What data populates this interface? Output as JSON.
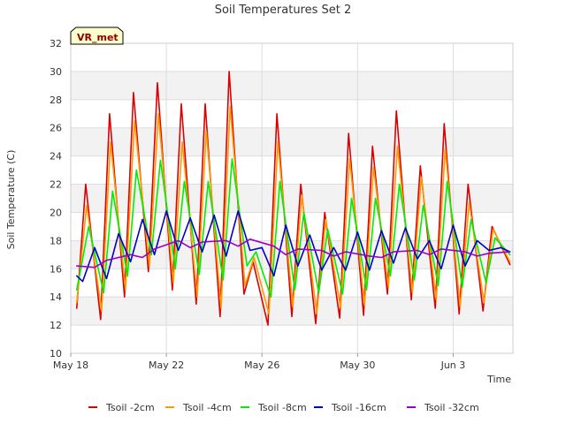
{
  "chart_data": {
    "type": "line",
    "title": "Soil Temperatures Set 2",
    "xlabel": "Time",
    "ylabel": "Soil Temperature (C)",
    "xlim": [
      "2015-05-18",
      "2015-06-05 12:00"
    ],
    "ylim": [
      10,
      32
    ],
    "x_ticks": [
      "May 18",
      "May 22",
      "May 26",
      "May 30",
      "Jun 3"
    ],
    "y_ticks": [
      10,
      12,
      14,
      16,
      18,
      20,
      22,
      24,
      26,
      28,
      30,
      32
    ],
    "grid": true,
    "banded_background": true,
    "legend_position": "bottom",
    "annotation": "VR_met",
    "series": [
      {
        "name": "Tsoil -2cm",
        "color": "#dd0000",
        "x": [
          "2015-05-18 06:00",
          "2015-05-18 15:00",
          "2015-05-19 06:00",
          "2015-05-19 15:00",
          "2015-05-20 06:00",
          "2015-05-20 15:00",
          "2015-05-21 06:00",
          "2015-05-21 15:00",
          "2015-05-22 06:00",
          "2015-05-22 15:00",
          "2015-05-23 06:00",
          "2015-05-23 15:00",
          "2015-05-24 06:00",
          "2015-05-24 15:00",
          "2015-05-25 06:00",
          "2015-05-25 15:00",
          "2015-05-26 06:00",
          "2015-05-26 15:00",
          "2015-05-27 06:00",
          "2015-05-27 15:00",
          "2015-05-28 06:00",
          "2015-05-28 15:00",
          "2015-05-29 06:00",
          "2015-05-29 15:00",
          "2015-05-30 06:00",
          "2015-05-30 15:00",
          "2015-05-31 06:00",
          "2015-05-31 15:00",
          "2015-06-01 06:00",
          "2015-06-01 15:00",
          "2015-06-02 06:00",
          "2015-06-02 15:00",
          "2015-06-03 06:00",
          "2015-06-03 15:00",
          "2015-06-04 06:00",
          "2015-06-04 15:00",
          "2015-06-05 09:00"
        ],
        "y": [
          13.2,
          22.0,
          12.4,
          27.0,
          14.0,
          28.5,
          15.8,
          29.2,
          14.5,
          27.7,
          13.5,
          27.7,
          12.6,
          30.0,
          14.2,
          16.5,
          12.0,
          27.0,
          12.6,
          22.0,
          12.1,
          20.0,
          12.5,
          25.6,
          12.7,
          24.7,
          14.2,
          27.2,
          13.8,
          23.3,
          13.2,
          26.3,
          12.8,
          22.0,
          13.0,
          19.0,
          16.3
        ]
      },
      {
        "name": "Tsoil -4cm",
        "color": "#ff9900",
        "x": [
          "2015-05-18 06:00",
          "2015-05-18 16:00",
          "2015-05-19 07:00",
          "2015-05-19 16:00",
          "2015-05-20 07:00",
          "2015-05-20 16:00",
          "2015-05-21 07:00",
          "2015-05-21 16:00",
          "2015-05-22 07:00",
          "2015-05-22 16:00",
          "2015-05-23 07:00",
          "2015-05-23 16:00",
          "2015-05-24 07:00",
          "2015-05-24 16:00",
          "2015-05-25 07:00",
          "2015-05-25 16:00",
          "2015-05-26 07:00",
          "2015-05-26 16:00",
          "2015-05-27 07:00",
          "2015-05-27 16:00",
          "2015-05-28 07:00",
          "2015-05-28 16:00",
          "2015-05-29 07:00",
          "2015-05-29 16:00",
          "2015-05-30 07:00",
          "2015-05-30 16:00",
          "2015-05-31 07:00",
          "2015-05-31 16:00",
          "2015-06-01 07:00",
          "2015-06-01 16:00",
          "2015-06-02 07:00",
          "2015-06-02 16:00",
          "2015-06-03 07:00",
          "2015-06-03 16:00",
          "2015-06-04 07:00",
          "2015-06-04 16:00",
          "2015-06-05 09:00"
        ],
        "y": [
          13.6,
          20.5,
          13.0,
          25.0,
          14.5,
          26.5,
          16.2,
          27.0,
          15.0,
          25.0,
          14.0,
          25.8,
          13.2,
          27.5,
          14.8,
          16.8,
          12.8,
          25.0,
          13.3,
          21.2,
          12.8,
          19.5,
          13.2,
          23.8,
          13.4,
          23.2,
          14.7,
          24.7,
          14.3,
          22.5,
          13.8,
          24.5,
          13.3,
          20.7,
          13.6,
          18.8,
          16.5
        ]
      },
      {
        "name": "Tsoil -8cm",
        "color": "#00ee00",
        "x": [
          "2015-05-18 06:00",
          "2015-05-18 18:00",
          "2015-05-19 09:00",
          "2015-05-19 18:00",
          "2015-05-20 09:00",
          "2015-05-20 18:00",
          "2015-05-21 09:00",
          "2015-05-21 18:00",
          "2015-05-22 09:00",
          "2015-05-22 18:00",
          "2015-05-23 09:00",
          "2015-05-23 18:00",
          "2015-05-24 09:00",
          "2015-05-24 18:00",
          "2015-05-25 09:00",
          "2015-05-25 18:00",
          "2015-05-26 09:00",
          "2015-05-26 18:00",
          "2015-05-27 09:00",
          "2015-05-27 18:00",
          "2015-05-28 09:00",
          "2015-05-28 18:00",
          "2015-05-29 09:00",
          "2015-05-29 18:00",
          "2015-05-30 09:00",
          "2015-05-30 18:00",
          "2015-05-31 09:00",
          "2015-05-31 18:00",
          "2015-06-01 09:00",
          "2015-06-01 18:00",
          "2015-06-02 09:00",
          "2015-06-02 18:00",
          "2015-06-03 09:00",
          "2015-06-03 18:00",
          "2015-06-04 09:00",
          "2015-06-04 18:00",
          "2015-06-05 09:00"
        ],
        "y": [
          14.5,
          19.0,
          14.3,
          21.5,
          15.5,
          23.0,
          17.0,
          23.7,
          16.0,
          22.2,
          15.6,
          22.2,
          15.2,
          23.8,
          16.2,
          17.2,
          14.0,
          22.2,
          14.5,
          20.0,
          14.3,
          18.8,
          14.2,
          21.0,
          14.5,
          21.0,
          15.5,
          22.0,
          15.2,
          20.5,
          14.8,
          22.2,
          14.7,
          19.5,
          15.0,
          18.2,
          17.0
        ]
      },
      {
        "name": "Tsoil -16cm",
        "color": "#0000cc",
        "x": [
          "2015-05-18 06:00",
          "2015-05-18 12:00",
          "2015-05-19 00:00",
          "2015-05-19 12:00",
          "2015-05-20 00:00",
          "2015-05-20 12:00",
          "2015-05-21 00:00",
          "2015-05-21 12:00",
          "2015-05-22 00:00",
          "2015-05-22 12:00",
          "2015-05-23 00:00",
          "2015-05-23 12:00",
          "2015-05-24 00:00",
          "2015-05-24 12:00",
          "2015-05-25 00:00",
          "2015-05-25 12:00",
          "2015-05-26 00:00",
          "2015-05-26 12:00",
          "2015-05-27 00:00",
          "2015-05-27 12:00",
          "2015-05-28 00:00",
          "2015-05-28 12:00",
          "2015-05-29 00:00",
          "2015-05-29 12:00",
          "2015-05-30 00:00",
          "2015-05-30 12:00",
          "2015-05-31 00:00",
          "2015-05-31 12:00",
          "2015-06-01 00:00",
          "2015-06-01 12:00",
          "2015-06-02 00:00",
          "2015-06-02 12:00",
          "2015-06-03 00:00",
          "2015-06-03 12:00",
          "2015-06-04 00:00",
          "2015-06-04 12:00",
          "2015-06-05 00:00",
          "2015-06-05 09:00"
        ],
        "y": [
          15.5,
          15.1,
          17.5,
          15.3,
          18.5,
          16.5,
          19.5,
          17.0,
          20.1,
          17.3,
          19.6,
          17.2,
          19.8,
          16.9,
          20.1,
          17.3,
          17.5,
          15.5,
          19.1,
          16.2,
          18.4,
          15.9,
          17.5,
          15.9,
          18.6,
          15.9,
          18.7,
          16.4,
          18.9,
          16.7,
          18.0,
          16.0,
          19.1,
          16.2,
          18.0,
          17.3,
          17.5,
          17.2
        ]
      },
      {
        "name": "Tsoil -32cm",
        "color": "#9900cc",
        "x": [
          "2015-05-18 06:00",
          "2015-05-19 00:00",
          "2015-05-19 12:00",
          "2015-05-20 12:00",
          "2015-05-21 00:00",
          "2015-05-21 12:00",
          "2015-05-22 12:00",
          "2015-05-23 00:00",
          "2015-05-23 12:00",
          "2015-05-24 12:00",
          "2015-05-25 00:00",
          "2015-05-25 12:00",
          "2015-05-26 12:00",
          "2015-05-27 00:00",
          "2015-05-27 12:00",
          "2015-05-28 12:00",
          "2015-05-29 00:00",
          "2015-05-29 12:00",
          "2015-05-30 12:00",
          "2015-05-31 00:00",
          "2015-05-31 12:00",
          "2015-06-01 12:00",
          "2015-06-02 00:00",
          "2015-06-02 12:00",
          "2015-06-03 12:00",
          "2015-06-04 00:00",
          "2015-06-04 12:00",
          "2015-06-05 09:00"
        ],
        "y": [
          16.2,
          16.1,
          16.6,
          17.0,
          16.8,
          17.4,
          18.0,
          17.5,
          17.9,
          18.0,
          17.6,
          18.1,
          17.6,
          17.0,
          17.4,
          17.3,
          16.9,
          17.2,
          16.9,
          16.8,
          17.2,
          17.3,
          17.0,
          17.4,
          17.2,
          16.9,
          17.1,
          17.2
        ]
      }
    ]
  }
}
